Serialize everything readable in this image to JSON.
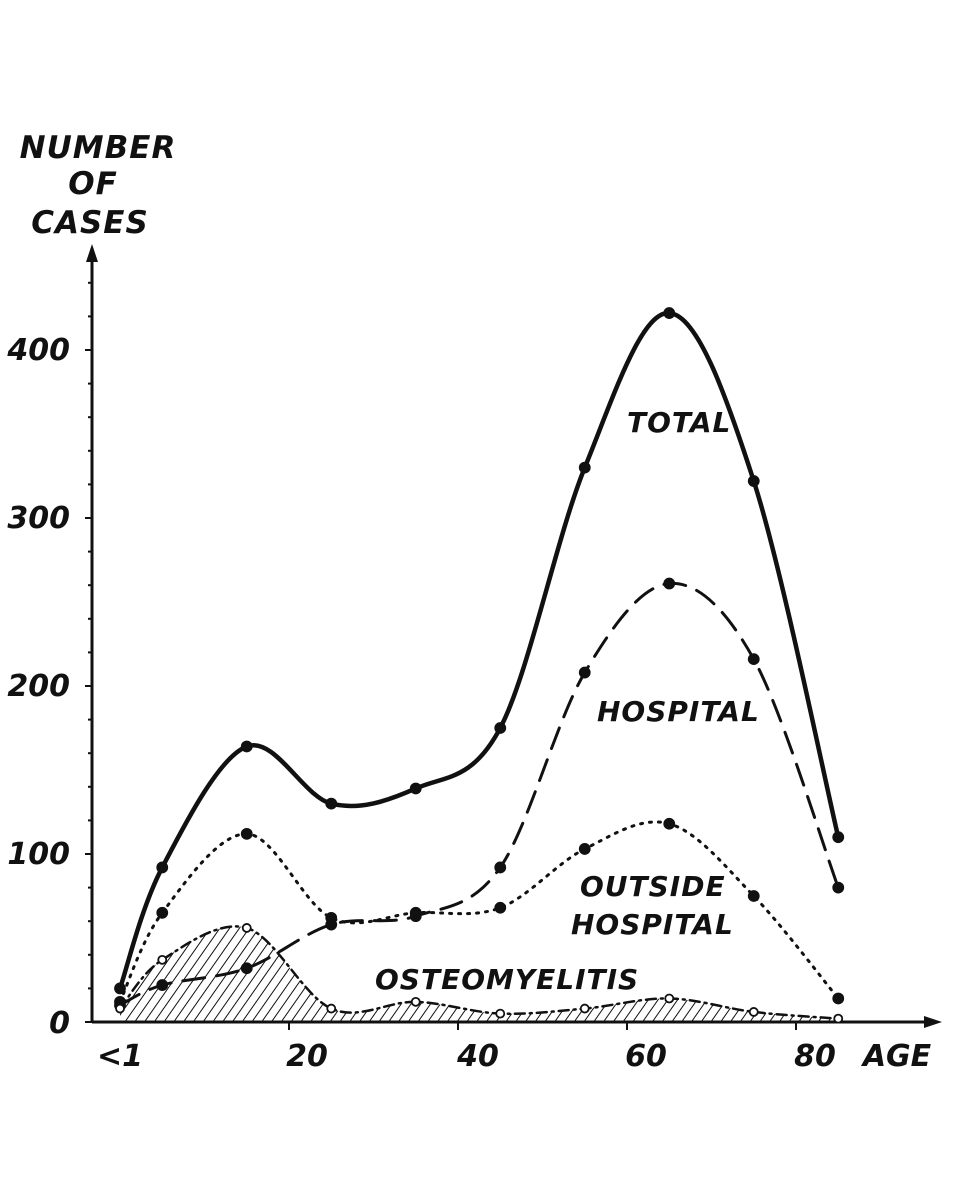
{
  "chart_data": {
    "type": "line",
    "ylabel": [
      "NUMBER",
      "OF",
      "CASES"
    ],
    "xlabel": "AGE",
    "x_tick_labels": [
      "<1",
      "20",
      "40",
      "60",
      "80"
    ],
    "y_tick_labels": [
      "0",
      "100",
      "200",
      "300",
      "400"
    ],
    "ylim": [
      0,
      450
    ],
    "xlim": [
      -1,
      95
    ],
    "grid": false,
    "legend": "labels placed next to curves",
    "series": [
      {
        "name": "TOTAL",
        "style": "solid",
        "x": [
          0,
          5,
          15,
          25,
          35,
          45,
          55,
          65,
          75,
          85
        ],
        "y": [
          20,
          92,
          164,
          130,
          139,
          175,
          330,
          422,
          322,
          110
        ]
      },
      {
        "name": "HOSPITAL",
        "style": "dashed",
        "x": [
          0,
          5,
          15,
          25,
          35,
          45,
          55,
          65,
          75,
          85
        ],
        "y": [
          10,
          22,
          32,
          58,
          63,
          92,
          208,
          261,
          216,
          80
        ]
      },
      {
        "name": "OUTSIDE HOSPITAL",
        "style": "dotted",
        "x": [
          0,
          5,
          15,
          25,
          35,
          45,
          55,
          65,
          75,
          85
        ],
        "y": [
          12,
          65,
          112,
          62,
          65,
          68,
          103,
          118,
          75,
          14
        ]
      },
      {
        "name": "OSTEOMYELITIS",
        "style": "dash-dot, hatched area",
        "x": [
          0,
          5,
          15,
          25,
          35,
          45,
          55,
          65,
          75,
          85
        ],
        "y": [
          8,
          37,
          56,
          8,
          12,
          5,
          8,
          14,
          6,
          2
        ]
      }
    ]
  }
}
